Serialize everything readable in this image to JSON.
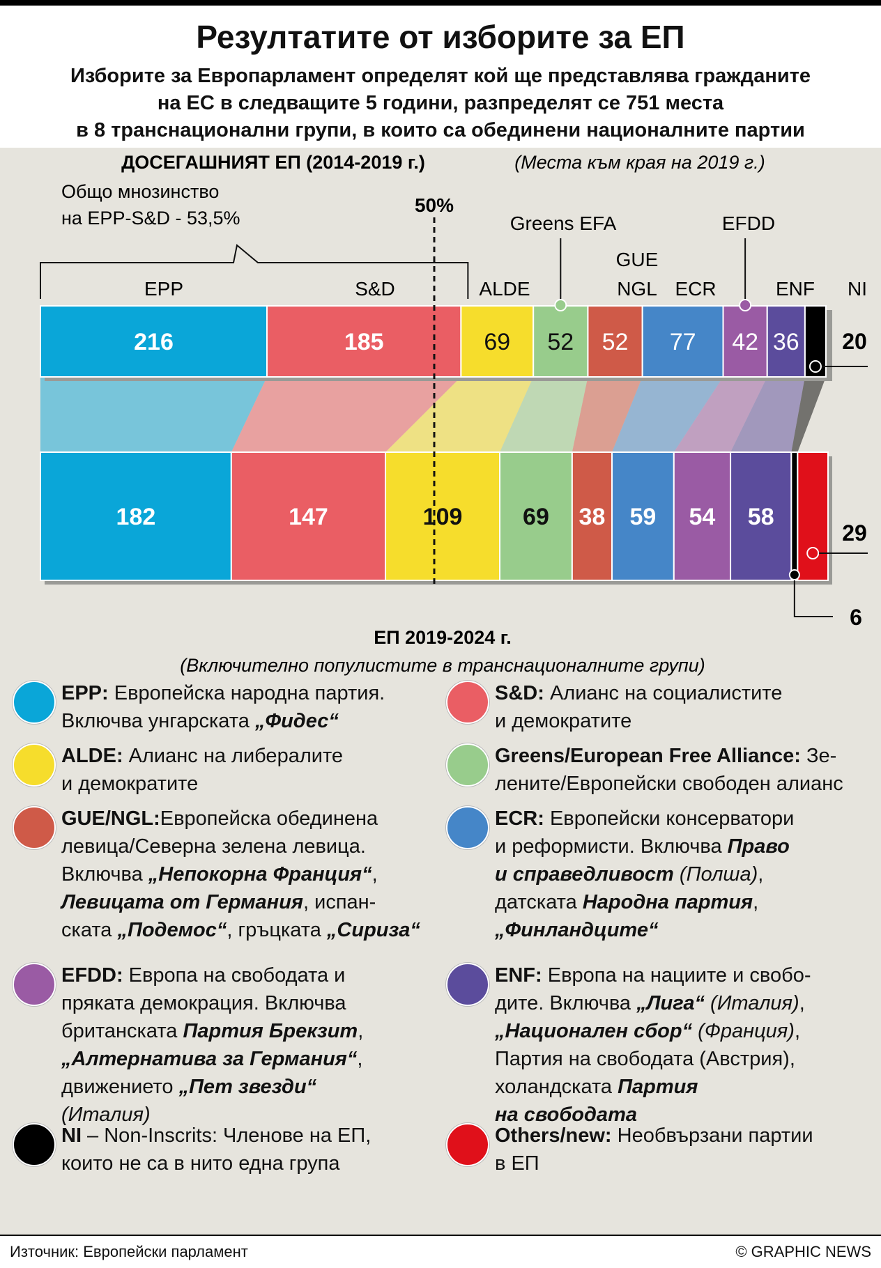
{
  "title": "Резултатите от изборите за ЕП",
  "subtitle_lines": [
    "Изборите за Европарламент определят кой ще представлява гражданите",
    "на ЕС в следващите 5 години, разпределят се 751 места",
    "в 8 транснационални групи, в които са обединени националните партии"
  ],
  "colors": {
    "EPP": "#0aa6d8",
    "SD": "#ea5e64",
    "ALDE": "#f6dd2c",
    "Greens": "#98cc8c",
    "GUE": "#cf5a48",
    "ECR": "#4586c8",
    "EFDD": "#9a5ba4",
    "ENF": "#5b4c9c",
    "NI": "#000000",
    "Others": "#e0101a"
  },
  "chart_data": {
    "type": "bar",
    "total_seats": 751,
    "majority_line_label": "50%",
    "previous": {
      "title": "ДОСЕГАШНИЯТ ЕП (2014-2019 г.)",
      "note": "(Места към края на 2019 г.)",
      "majority_note_lines": [
        "Общо мнозинство",
        "на EPP-S&D - 53,5%"
      ],
      "groups": [
        {
          "key": "EPP",
          "label": "EPP",
          "seats": 216
        },
        {
          "key": "SD",
          "label": "S&D",
          "seats": 185
        },
        {
          "key": "ALDE",
          "label": "ALDE",
          "seats": 69
        },
        {
          "key": "Greens",
          "label": "Greens EFA",
          "seats": 52
        },
        {
          "key": "GUE",
          "label": "GUE NGL",
          "seats": 52
        },
        {
          "key": "ECR",
          "label": "ECR",
          "seats": 77
        },
        {
          "key": "EFDD",
          "label": "EFDD",
          "seats": 42
        },
        {
          "key": "ENF",
          "label": "ENF",
          "seats": 36
        },
        {
          "key": "NI",
          "label": "NI",
          "seats": 20
        }
      ]
    },
    "current": {
      "title": "ЕП 2019-2024 г.",
      "note": "(Включително популистите в транснационалните групи)",
      "groups": [
        {
          "key": "EPP",
          "seats": 182
        },
        {
          "key": "SD",
          "seats": 147
        },
        {
          "key": "ALDE",
          "seats": 109
        },
        {
          "key": "Greens",
          "seats": 69
        },
        {
          "key": "GUE",
          "seats": 38
        },
        {
          "key": "ECR",
          "seats": 59
        },
        {
          "key": "EFDD",
          "seats": 54
        },
        {
          "key": "ENF",
          "seats": 58
        },
        {
          "key": "NI",
          "seats": 6
        },
        {
          "key": "Others",
          "seats": 29
        }
      ]
    }
  },
  "legend": [
    {
      "key": "EPP",
      "html": "<b>EPP:</b> Европейска народна партия.<br>Включва унгарската <b><i>„Фидес“</i></b>"
    },
    {
      "key": "SD",
      "html": "<b>S&amp;D:</b> Алианс на социалистите<br>и демократите"
    },
    {
      "key": "ALDE",
      "html": "<b>ALDE:</b> Алианс на либералите<br>и демократите"
    },
    {
      "key": "Greens",
      "html": "<b>Greens/European Free Alliance:</b> Зе-<br>лените/Европейски свободен алианс"
    },
    {
      "key": "GUE",
      "html": "<b>GUE/NGL:</b>Европейска обединена<br>левица/Северна зелена левица.<br>Включва <b><i>„Непокорна Франция“</i></b>,<br><b><i>Левицата от Германия</i></b>, испан-<br>ската <b><i>„Подемос“</i></b>, гръцката <b><i>„Сириза“</i></b>"
    },
    {
      "key": "ECR",
      "html": "<b>ECR:</b> Европейски консерватори<br>и реформисти. Включва <b><i>Право</i></b><br><b><i>и справедливост</i></b> <i>(Полша)</i>,<br>датската <b><i>Народна партия</i></b>,<br><b><i>„Финландците“</i></b>"
    },
    {
      "key": "EFDD",
      "html": "<b>EFDD:</b> Европа на свободата и<br>пряката демокрация. Включва<br>британската <b><i>Партия Брекзит</i></b>,<br><b><i>„Алтернатива за Германия“</i></b>,<br>движението <b><i>„Пет звезди“</i></b><br><i>(Италия)</i>"
    },
    {
      "key": "ENF",
      "html": "<b>ENF:</b> Европа на нациите и свобо-<br>дите. Включва <b><i>„Лига“</i></b> <i>(Италия)</i>,<br><b><i>„Национален сбор“</i></b> <i>(Франция)</i>,<br>Партия на свободата (Австрия),<br>холандската <b><i>Партия</i></b><br><b><i>на свободата</i></b>"
    },
    {
      "key": "NI",
      "html": "<b>NI</b> –  Non-Inscrits: Членове на ЕП,<br>които не са в нито една  група"
    },
    {
      "key": "Others",
      "html": "<b>Others/new:</b> Необвързани партии<br>в ЕП"
    }
  ],
  "footer": {
    "source": "Източник: Европейски парламент",
    "credit": "© GRAPHIC NEWS"
  }
}
